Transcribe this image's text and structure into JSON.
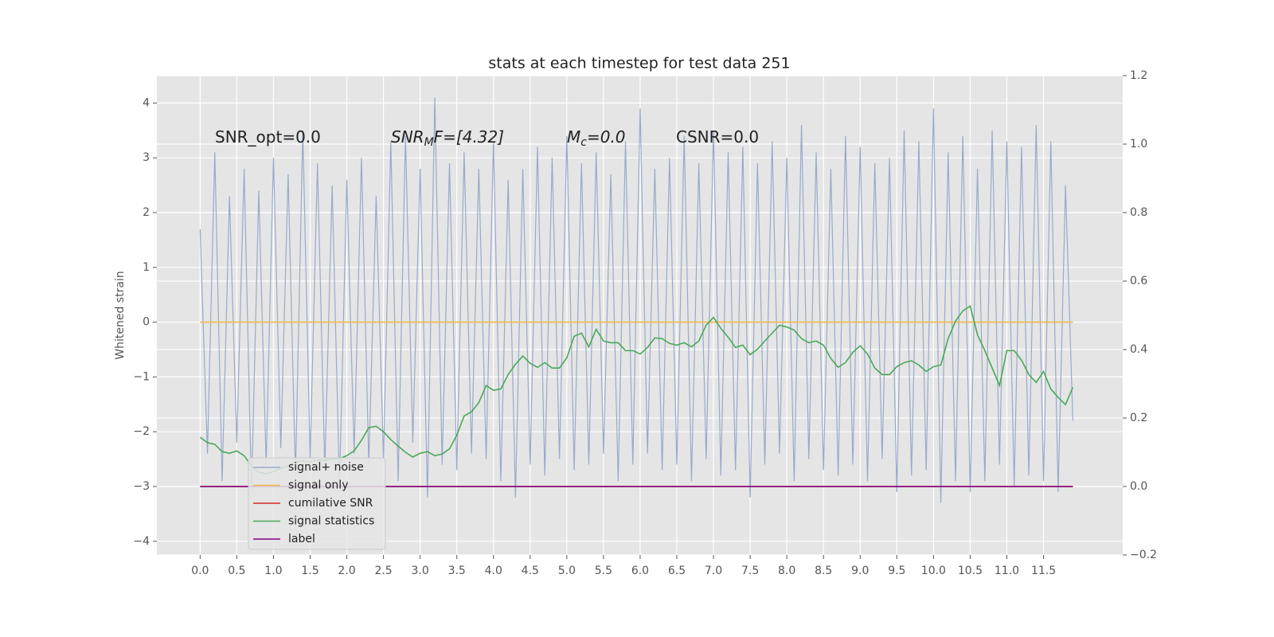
{
  "chart_data": {
    "type": "line",
    "title": "stats at each timestep for test data 251",
    "ylabel": "Whitened strain",
    "annotations": [
      {
        "text": "SNR_opt=0.0"
      },
      {
        "text": "SNR",
        "sub": "M",
        "rest": "F=[4.32]"
      },
      {
        "text": "M",
        "sub": "c",
        "rest": "=0.0"
      },
      {
        "text": "CSNR=0.0"
      }
    ],
    "x": [
      0,
      0.1,
      0.2,
      0.3,
      0.4,
      0.5,
      0.6,
      0.7,
      0.8,
      0.9,
      1,
      1.1,
      1.2,
      1.3,
      1.4,
      1.5,
      1.6,
      1.7,
      1.8,
      1.9,
      2,
      2.1,
      2.2,
      2.3,
      2.4,
      2.5,
      2.6,
      2.7,
      2.8,
      2.9,
      3,
      3.1,
      3.2,
      3.3,
      3.4,
      3.5,
      3.6,
      3.7,
      3.8,
      3.9,
      4,
      4.1,
      4.2,
      4.3,
      4.4,
      4.5,
      4.6,
      4.7,
      4.8,
      4.9,
      5,
      5.1,
      5.2,
      5.3,
      5.4,
      5.5,
      5.6,
      5.7,
      5.8,
      5.9,
      6,
      6.1,
      6.2,
      6.3,
      6.4,
      6.5,
      6.6,
      6.7,
      6.8,
      6.9,
      7,
      7.1,
      7.2,
      7.3,
      7.4,
      7.5,
      7.6,
      7.7,
      7.8,
      7.9,
      8,
      8.1,
      8.2,
      8.3,
      8.4,
      8.5,
      8.6,
      8.7,
      8.8,
      8.9,
      9,
      9.1,
      9.2,
      9.3,
      9.4,
      9.5,
      9.6,
      9.7,
      9.8,
      9.9,
      10,
      10.1,
      10.2,
      10.3,
      10.4,
      10.5,
      10.6,
      10.7,
      10.8,
      10.9,
      11,
      11.1,
      11.2,
      11.3,
      11.4,
      11.5,
      11.6,
      11.7,
      11.8,
      11.9
    ],
    "series": [
      {
        "name": "signal+ noise",
        "color": "#98aacb",
        "values": [
          1.7,
          -2.4,
          3.1,
          -2.9,
          2.3,
          -2.2,
          2.8,
          -3.1,
          2.4,
          -2.6,
          3.0,
          -2.3,
          2.7,
          -2.8,
          3.5,
          -2.5,
          2.9,
          -2.7,
          2.5,
          -3.0,
          2.6,
          -2.4,
          3.0,
          -2.6,
          2.3,
          -2.5,
          3.3,
          -2.9,
          3.4,
          -2.2,
          2.8,
          -3.2,
          4.1,
          -2.6,
          2.9,
          -2.7,
          3.1,
          -2.4,
          2.8,
          -2.5,
          3.3,
          -2.9,
          2.6,
          -3.2,
          2.8,
          -2.6,
          3.2,
          -2.8,
          3.0,
          -2.5,
          3.4,
          -2.7,
          2.9,
          -2.6,
          3.1,
          -2.4,
          2.7,
          -2.9,
          3.3,
          -2.6,
          3.9,
          -2.4,
          2.8,
          -2.7,
          3.0,
          -2.6,
          3.4,
          -2.9,
          2.9,
          -2.5,
          3.5,
          -2.8,
          3.1,
          -2.7,
          3.2,
          -3.2,
          2.9,
          -2.6,
          3.3,
          -2.4,
          3.0,
          -2.9,
          3.6,
          -2.5,
          3.1,
          -2.7,
          2.8,
          -2.8,
          3.4,
          -2.6,
          3.2,
          -2.9,
          2.9,
          -2.5,
          3.0,
          -3.1,
          3.5,
          -2.8,
          3.3,
          -2.7,
          3.9,
          -3.3,
          3.1,
          -2.9,
          3.4,
          -3.1,
          2.8,
          -2.9,
          3.5,
          -2.6,
          3.3,
          -3.0,
          3.2,
          -2.8,
          3.6,
          -2.9,
          3.3,
          -3.1,
          2.5,
          -1.8
        ]
      },
      {
        "name": "signal only",
        "color": "#f2b84b",
        "values": [
          0,
          0,
          0,
          0,
          0,
          0,
          0,
          0,
          0,
          0,
          0,
          0,
          0,
          0,
          0,
          0,
          0,
          0,
          0,
          0,
          0,
          0,
          0,
          0,
          0,
          0,
          0,
          0,
          0,
          0,
          0,
          0,
          0,
          0,
          0,
          0,
          0,
          0,
          0,
          0,
          0,
          0,
          0,
          0,
          0,
          0,
          0,
          0,
          0,
          0,
          0,
          0,
          0,
          0,
          0,
          0,
          0,
          0,
          0,
          0,
          0,
          0,
          0,
          0,
          0,
          0,
          0,
          0,
          0,
          0,
          0,
          0,
          0,
          0,
          0,
          0,
          0,
          0,
          0,
          0,
          0,
          0,
          0,
          0,
          0,
          0,
          0,
          0,
          0,
          0,
          0,
          0,
          0,
          0,
          0,
          0,
          0,
          0,
          0,
          0,
          0,
          0,
          0,
          0,
          0,
          0,
          0,
          0,
          0,
          0,
          0,
          0,
          0,
          0,
          0,
          0,
          0,
          0,
          0,
          0
        ]
      },
      {
        "name": "cumilative SNR",
        "color": "#d62728",
        "axis": "y2",
        "values": [
          0,
          0,
          0,
          0,
          0,
          0,
          0,
          0,
          0,
          0,
          0,
          0,
          0,
          0,
          0,
          0,
          0,
          0,
          0,
          0,
          0,
          0,
          0,
          0,
          0,
          0,
          0,
          0,
          0,
          0,
          0,
          0,
          0,
          0,
          0,
          0,
          0,
          0,
          0,
          0,
          0,
          0,
          0,
          0,
          0,
          0,
          0,
          0,
          0,
          0,
          0,
          0,
          0,
          0,
          0,
          0,
          0,
          0,
          0,
          0,
          0,
          0,
          0,
          0,
          0,
          0,
          0,
          0,
          0,
          0,
          0,
          0,
          0,
          0,
          0,
          0,
          0,
          0,
          0,
          0,
          0,
          0,
          0,
          0,
          0,
          0,
          0,
          0,
          0,
          0,
          0,
          0,
          0,
          0,
          0,
          0,
          0,
          0,
          0,
          0,
          0,
          0,
          0,
          0,
          0,
          0,
          0,
          0,
          0,
          0,
          0,
          0,
          0,
          0,
          0,
          0,
          0,
          0,
          0,
          0
        ]
      },
      {
        "name": "signal statistics",
        "color": "#4aa85a",
        "axis": "y2",
        "values": [
          0.144,
          0.128,
          0.123,
          0.102,
          0.097,
          0.104,
          0.09,
          0.06,
          0.042,
          0.037,
          0.044,
          0.053,
          0.06,
          0.072,
          0.074,
          0.072,
          0.077,
          0.077,
          0.081,
          0.081,
          0.09,
          0.104,
          0.135,
          0.172,
          0.176,
          0.16,
          0.137,
          0.118,
          0.1,
          0.086,
          0.097,
          0.102,
          0.09,
          0.095,
          0.11,
          0.15,
          0.206,
          0.218,
          0.245,
          0.295,
          0.281,
          0.285,
          0.327,
          0.357,
          0.381,
          0.36,
          0.348,
          0.362,
          0.346,
          0.346,
          0.376,
          0.439,
          0.448,
          0.408,
          0.459,
          0.425,
          0.42,
          0.42,
          0.397,
          0.397,
          0.387,
          0.406,
          0.434,
          0.432,
          0.418,
          0.413,
          0.42,
          0.408,
          0.425,
          0.471,
          0.494,
          0.462,
          0.436,
          0.406,
          0.413,
          0.385,
          0.401,
          0.425,
          0.448,
          0.471,
          0.466,
          0.457,
          0.432,
          0.42,
          0.425,
          0.413,
          0.374,
          0.348,
          0.362,
          0.392,
          0.411,
          0.387,
          0.346,
          0.327,
          0.327,
          0.35,
          0.362,
          0.367,
          0.355,
          0.336,
          0.35,
          0.355,
          0.432,
          0.483,
          0.513,
          0.527,
          0.443,
          0.397,
          0.346,
          0.295,
          0.397,
          0.397,
          0.369,
          0.327,
          0.304,
          0.336,
          0.285,
          0.26,
          0.239,
          0.29
        ]
      },
      {
        "name": "label",
        "color": "#800080",
        "axis": "y2",
        "values": [
          0,
          0,
          0,
          0,
          0,
          0,
          0,
          0,
          0,
          0,
          0,
          0,
          0,
          0,
          0,
          0,
          0,
          0,
          0,
          0,
          0,
          0,
          0,
          0,
          0,
          0,
          0,
          0,
          0,
          0,
          0,
          0,
          0,
          0,
          0,
          0,
          0,
          0,
          0,
          0,
          0,
          0,
          0,
          0,
          0,
          0,
          0,
          0,
          0,
          0,
          0,
          0,
          0,
          0,
          0,
          0,
          0,
          0,
          0,
          0,
          0,
          0,
          0,
          0,
          0,
          0,
          0,
          0,
          0,
          0,
          0,
          0,
          0,
          0,
          0,
          0,
          0,
          0,
          0,
          0,
          0,
          0,
          0,
          0,
          0,
          0,
          0,
          0,
          0,
          0,
          0,
          0,
          0,
          0,
          0,
          0,
          0,
          0,
          0,
          0,
          0,
          0,
          0,
          0,
          0,
          0,
          0,
          0,
          0,
          0,
          0,
          0,
          0,
          0,
          0,
          0,
          0,
          0,
          0,
          0
        ]
      }
    ],
    "xlim": [
      -0.59,
      12.58
    ],
    "xticks": [
      {
        "value": 0,
        "label": "0.0"
      },
      0.5,
      {
        "value": 1,
        "label": "1.0"
      },
      1.5,
      {
        "value": 2,
        "label": "2.0"
      },
      2.5,
      {
        "value": 3,
        "label": "3.0"
      },
      3.5,
      {
        "value": 4,
        "label": "4.0"
      },
      4.5,
      {
        "value": 5,
        "label": "5.0"
      },
      5.5,
      {
        "value": 6,
        "label": "6.0"
      },
      6.5,
      {
        "value": 7,
        "label": "7.0"
      },
      7.5,
      {
        "value": 8,
        "label": "8.0"
      },
      8.5,
      {
        "value": 9,
        "label": "9.0"
      },
      9.5,
      {
        "value": 10,
        "label": "10.0"
      },
      10.5,
      {
        "value": 11,
        "label": "11.0"
      },
      11.5
    ],
    "ylim": [
      -4.25,
      4.5
    ],
    "yticks": [
      {
        "value": -4,
        "label": "−4"
      },
      {
        "value": -3,
        "label": "−3"
      },
      {
        "value": -2,
        "label": "−2"
      },
      {
        "value": -1,
        "label": "−1"
      },
      0,
      1,
      2,
      3,
      4
    ],
    "y2lim": [
      -0.2,
      1.2
    ],
    "y2ticks": [
      {
        "value": -0.2,
        "label": "−0.2"
      },
      {
        "value": 0,
        "label": "0.0"
      },
      0.2,
      0.4,
      0.6,
      0.8,
      {
        "value": 1,
        "label": "1.0"
      },
      1.2
    ],
    "grid": true,
    "legend": "lower left"
  }
}
